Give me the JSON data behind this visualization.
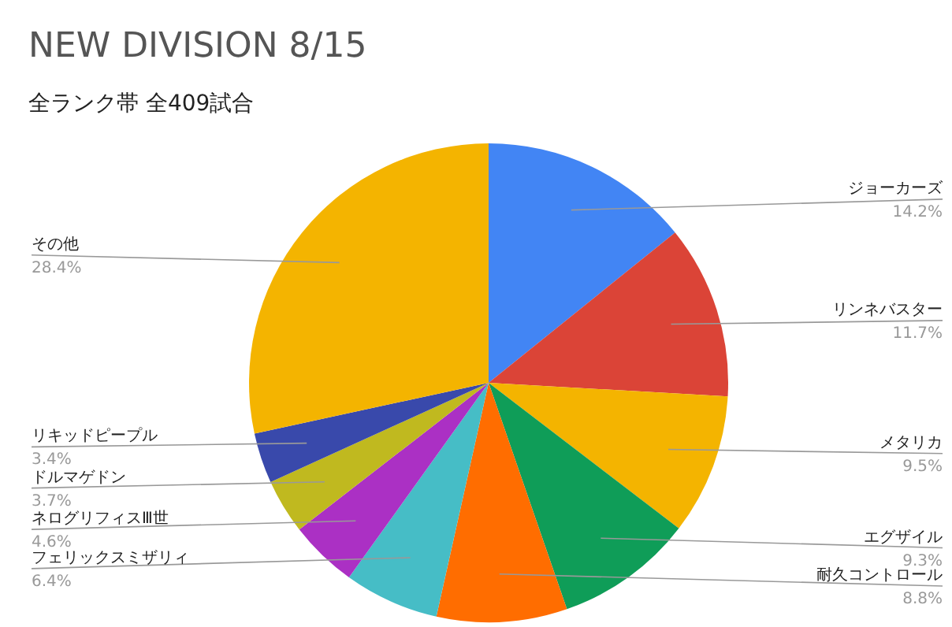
{
  "chart_data": {
    "type": "pie",
    "title": "NEW DIVISION 8/15",
    "subtitle": "全ランク帯 全409試合",
    "categories": [
      "ジョーカーズ",
      "リンネバスター",
      "メタリカ",
      "エグザイル",
      "耐久コントロール",
      "フェリックスミザリィ",
      "ネログリフィスⅢ世",
      "ドルマゲドン",
      "リキッドピープル",
      "その他"
    ],
    "values": [
      14.2,
      11.7,
      9.5,
      9.3,
      8.8,
      6.4,
      4.6,
      3.7,
      3.4,
      28.4
    ],
    "colors": [
      "#4285f4",
      "#db4437",
      "#f4b400",
      "#0f9d58",
      "#ff6d00",
      "#46bdc6",
      "#ab30c4",
      "#c0b91f",
      "#3949ab",
      "#f4b400"
    ],
    "value_labels": [
      "14.2%",
      "11.7%",
      "9.5%",
      "9.3%",
      "8.8%",
      "6.4%",
      "4.6%",
      "3.7%",
      "3.4%",
      "28.4%"
    ]
  }
}
